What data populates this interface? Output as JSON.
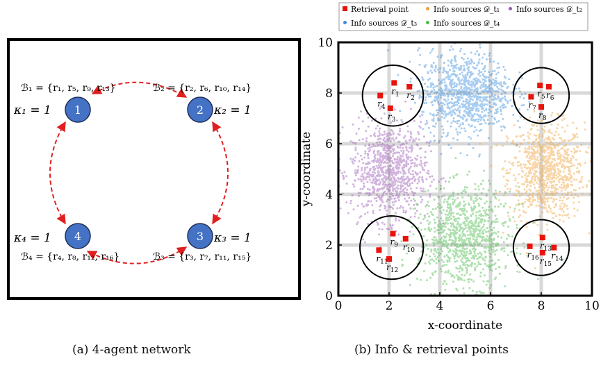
{
  "panel_a": {
    "caption": "(a) 4-agent network",
    "agents": [
      {
        "id": "1",
        "kappa": "κ₁ = 1",
        "set_label": "ℬ₁ = {r₁, r₅, r₉, r₁₃}"
      },
      {
        "id": "2",
        "kappa": "κ₂ = 1",
        "set_label": "ℬ₂ = {r₂, r₆, r₁₀, r₁₄}"
      },
      {
        "id": "3",
        "kappa": "κ₃ = 1",
        "set_label": "ℬ₃ = {r₃, r₇, r₁₁, r₁₅}"
      },
      {
        "id": "4",
        "kappa": "κ₄ = 1",
        "set_label": "ℬ₄ = {r₄, r₈, r₁₂, r₁₆}"
      }
    ],
    "links": [
      [
        "1",
        "2"
      ],
      [
        "2",
        "3"
      ],
      [
        "3",
        "4"
      ],
      [
        "4",
        "1"
      ]
    ],
    "colors": {
      "node_fill": "#4472c4",
      "node_stroke": "#1f2d5a",
      "link": "#e02020"
    }
  },
  "panel_b": {
    "caption": "(b) Info & retrieval points",
    "xlabel": "x-coordinate",
    "ylabel": "y-coordinate",
    "legend": [
      {
        "label": "Retrieval point",
        "color": "#e8140c",
        "marker": "square"
      },
      {
        "label": "Info sources 𝒟_t₁",
        "color": "#f0a13a",
        "marker": "dot"
      },
      {
        "label": "Info sources 𝒟_t₂",
        "color": "#9b59b6",
        "marker": "dot"
      },
      {
        "label": "Info sources 𝒟_t₃",
        "color": "#3b8fe0",
        "marker": "dot"
      },
      {
        "label": "Info sources 𝒟_t₄",
        "color": "#4cbb4c",
        "marker": "dot"
      }
    ]
  },
  "chart_data": {
    "type": "scatter",
    "xlabel": "x-coordinate",
    "ylabel": "y-coordinate",
    "xlim": [
      0,
      10
    ],
    "ylim": [
      0,
      10
    ],
    "xticks": [
      0,
      2,
      4,
      6,
      8,
      10
    ],
    "yticks": [
      0,
      2,
      4,
      6,
      8,
      10
    ],
    "grid": true,
    "legend_position": "top",
    "retrieval_points": [
      {
        "name": "r1",
        "x": 2.2,
        "y": 8.4
      },
      {
        "name": "r2",
        "x": 2.8,
        "y": 8.25
      },
      {
        "name": "r3",
        "x": 2.05,
        "y": 7.4
      },
      {
        "name": "r4",
        "x": 1.65,
        "y": 7.9
      },
      {
        "name": "r5",
        "x": 7.95,
        "y": 8.3
      },
      {
        "name": "r6",
        "x": 8.3,
        "y": 8.25
      },
      {
        "name": "r7",
        "x": 7.6,
        "y": 7.85
      },
      {
        "name": "r8",
        "x": 8.0,
        "y": 7.45
      },
      {
        "name": "r9",
        "x": 2.15,
        "y": 2.45
      },
      {
        "name": "r10",
        "x": 2.65,
        "y": 2.25
      },
      {
        "name": "r11",
        "x": 1.6,
        "y": 1.8
      },
      {
        "name": "r12",
        "x": 2.0,
        "y": 1.45
      },
      {
        "name": "r13",
        "x": 8.05,
        "y": 2.3
      },
      {
        "name": "r14",
        "x": 8.5,
        "y": 1.9
      },
      {
        "name": "r15",
        "x": 8.05,
        "y": 1.7
      },
      {
        "name": "r16",
        "x": 7.55,
        "y": 1.95
      }
    ],
    "circles": [
      {
        "cx": 2.15,
        "cy": 7.9,
        "r": 1.2
      },
      {
        "cx": 8.0,
        "cy": 7.9,
        "r": 1.1
      },
      {
        "cx": 2.1,
        "cy": 1.9,
        "r": 1.25
      },
      {
        "cx": 8.0,
        "cy": 1.9,
        "r": 1.1
      }
    ],
    "series": [
      {
        "name": "Info sources 𝒟_t₁",
        "center": [
          8.2,
          4.9
        ],
        "spread": [
          0.75,
          0.95
        ],
        "count": 900
      },
      {
        "name": "Info sources 𝒟_t₂",
        "center": [
          2.0,
          4.9
        ],
        "spread": [
          0.75,
          0.95
        ],
        "count": 900
      },
      {
        "name": "Info sources 𝒟_t₃",
        "center": [
          5.0,
          8.0
        ],
        "spread": [
          0.9,
          0.8
        ],
        "count": 1000
      },
      {
        "name": "Info sources 𝒟_t₄",
        "center": [
          5.0,
          2.3
        ],
        "spread": [
          0.9,
          0.95
        ],
        "count": 1000
      }
    ]
  }
}
